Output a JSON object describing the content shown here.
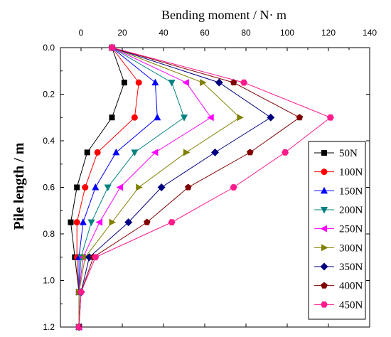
{
  "chart_data": {
    "type": "line",
    "xlabel": "Bending moment / N· m",
    "ylabel": "Pile length / m",
    "xlim": [
      -10,
      140
    ],
    "ylim": [
      0.0,
      1.2
    ],
    "x_axis_position": "top",
    "y_axis_inverted": true,
    "x_ticks": [
      0,
      20,
      40,
      60,
      80,
      100,
      120,
      140
    ],
    "y_ticks": [
      0.0,
      0.2,
      0.4,
      0.6,
      0.8,
      1.0,
      1.2
    ],
    "x_tick_labels": [
      "0",
      "20",
      "40",
      "60",
      "80",
      "100",
      "120",
      "140"
    ],
    "y_tick_labels": [
      "0.0",
      "0.2",
      "0.4",
      "0.6",
      "0.8",
      "1.0",
      "1.2"
    ],
    "grid": false,
    "legend_position": "right",
    "y": [
      0.0,
      0.15,
      0.3,
      0.45,
      0.6,
      0.75,
      0.9,
      1.05,
      1.2
    ],
    "series": [
      {
        "name": "50N",
        "color": "#000000",
        "marker": "square",
        "x": [
          15,
          21,
          15,
          3,
          -2,
          -5,
          -3,
          -1,
          -1
        ]
      },
      {
        "name": "100N",
        "color": "#ff0000",
        "marker": "circle",
        "x": [
          15,
          28,
          26,
          8,
          2,
          -2,
          -2,
          -1,
          -1
        ]
      },
      {
        "name": "150N",
        "color": "#0000ff",
        "marker": "triangle-up",
        "x": [
          15,
          36,
          37,
          17,
          7,
          1,
          -1,
          -1,
          -1
        ]
      },
      {
        "name": "200N",
        "color": "#008080",
        "marker": "triangle-down",
        "x": [
          15,
          44,
          50,
          26,
          13,
          5,
          0,
          -1,
          -1
        ]
      },
      {
        "name": "250N",
        "color": "#ff00ff",
        "marker": "triangle-left",
        "x": [
          15,
          51,
          63,
          36,
          19,
          9,
          1,
          -1,
          -1
        ]
      },
      {
        "name": "300N",
        "color": "#808000",
        "marker": "triangle-right",
        "x": [
          15,
          59,
          77,
          51,
          28,
          15,
          2,
          -1,
          -1
        ]
      },
      {
        "name": "350N",
        "color": "#000080",
        "marker": "diamond",
        "x": [
          15,
          67,
          92,
          65,
          39,
          23,
          4,
          0,
          -1
        ]
      },
      {
        "name": "400N",
        "color": "#800000",
        "marker": "pentagon",
        "x": [
          15,
          74,
          106,
          82,
          52,
          32,
          6,
          0,
          -1
        ]
      },
      {
        "name": "450N",
        "color": "#ff1a8c",
        "marker": "hexagon",
        "x": [
          15,
          79,
          121,
          99,
          74,
          44,
          7,
          0,
          -1
        ]
      }
    ]
  }
}
